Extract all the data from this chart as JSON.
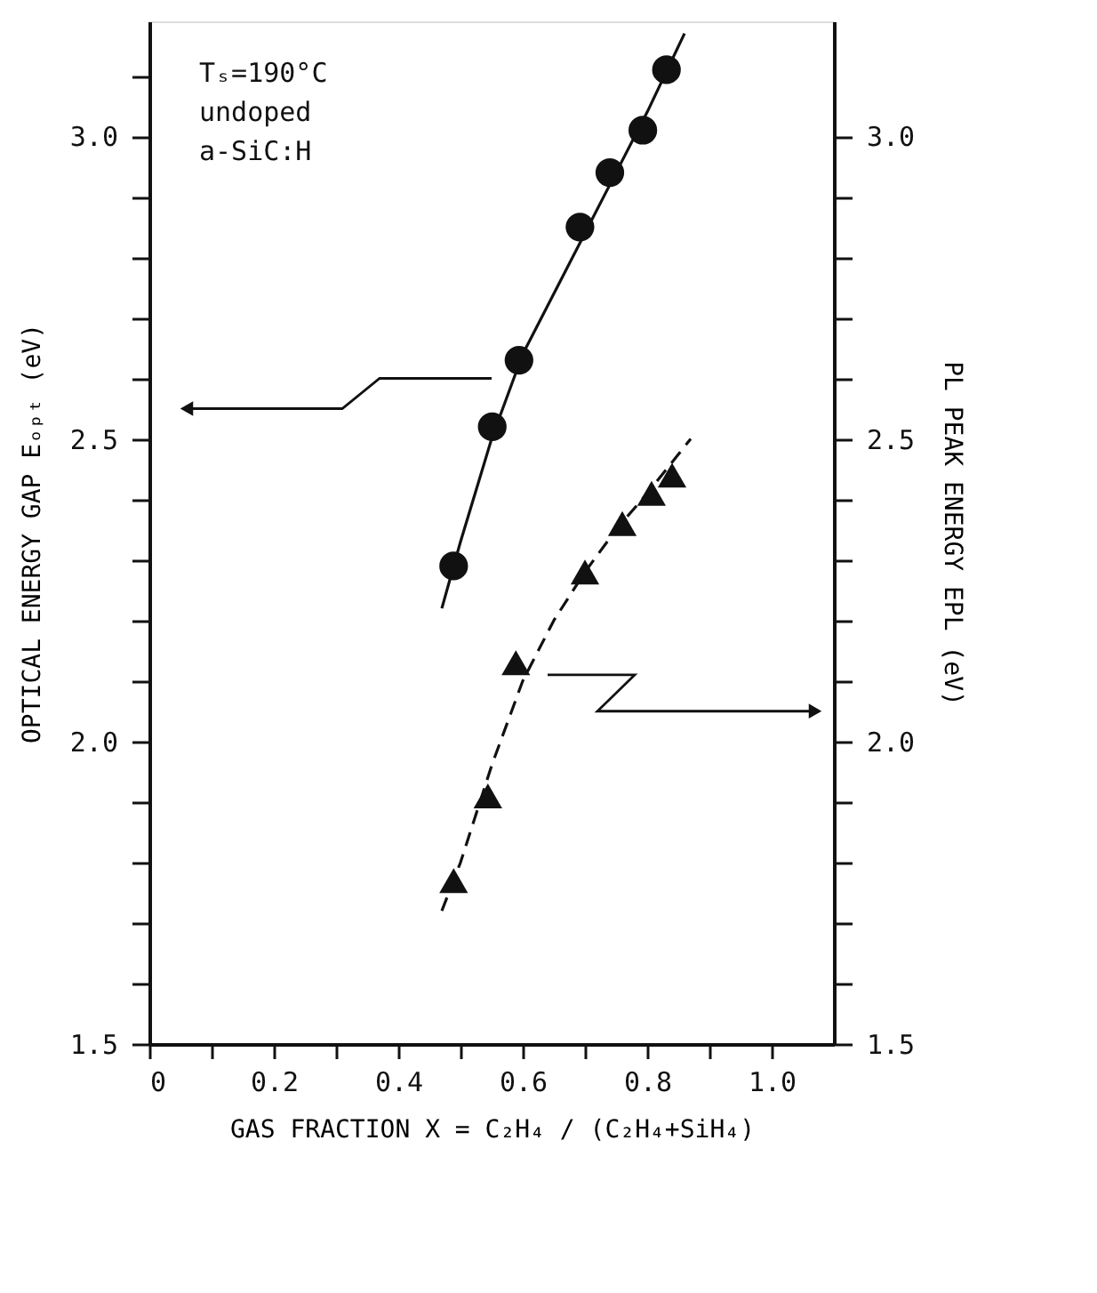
{
  "chart_data": {
    "type": "scatter",
    "xlabel": "GAS FRACTION X = C₂H₄ / (C₂H₄+SiH₄)",
    "ylabel": "OPTICAL ENERGY GAP Eₒₚₜ (eV)",
    "y2label": "PL PEAK ENERGY EPL (eV)",
    "annotations": [
      "Tₛ=190°C",
      "undoped",
      "a-SiC:H"
    ],
    "xlim": [
      0,
      1.1
    ],
    "xticks": [
      0,
      {
        "value": 0.1,
        "label": null
      },
      {
        "value": 0.2,
        "label": "0.2"
      },
      {
        "value": 0.3,
        "label": null
      },
      {
        "value": 0.4,
        "label": "0.4"
      },
      {
        "value": 0.5,
        "label": null
      },
      {
        "value": 0.6,
        "label": "0.6"
      },
      {
        "value": 0.7,
        "label": null
      },
      {
        "value": 0.8,
        "label": "0.8"
      },
      {
        "value": 0.9,
        "label": null
      },
      {
        "value": 1.0,
        "label": "1.0"
      }
    ],
    "ylim": [
      1.5,
      3.19
    ],
    "yticks": [
      {
        "value": 1.5,
        "label": "1.5"
      },
      {
        "value": 1.6,
        "label": null
      },
      {
        "value": 1.7,
        "label": null
      },
      {
        "value": 1.8,
        "label": null
      },
      {
        "value": 1.9,
        "label": null
      },
      {
        "value": 2.0,
        "label": "2.0"
      },
      {
        "value": 2.1,
        "label": null
      },
      {
        "value": 2.2,
        "label": null
      },
      {
        "value": 2.3,
        "label": null
      },
      {
        "value": 2.4,
        "label": null
      },
      {
        "value": 2.5,
        "label": "2.5"
      },
      {
        "value": 2.6,
        "label": null
      },
      {
        "value": 2.7,
        "label": null
      },
      {
        "value": 2.8,
        "label": null
      },
      {
        "value": 2.9,
        "label": null
      },
      {
        "value": 3.0,
        "label": "3.0"
      },
      {
        "value": 3.1,
        "label": null
      }
    ],
    "y2lim": [
      1.5,
      3.19
    ],
    "y2ticks": [
      {
        "value": 1.5,
        "label": "1.5"
      },
      {
        "value": 1.6,
        "label": null
      },
      {
        "value": 1.7,
        "label": null
      },
      {
        "value": 1.8,
        "label": null
      },
      {
        "value": 1.9,
        "label": null
      },
      {
        "value": 2.0,
        "label": "2.0"
      },
      {
        "value": 2.1,
        "label": null
      },
      {
        "value": 2.2,
        "label": null
      },
      {
        "value": 2.3,
        "label": null
      },
      {
        "value": 2.4,
        "label": null
      },
      {
        "value": 2.5,
        "label": "2.5"
      },
      {
        "value": 2.6,
        "label": null
      },
      {
        "value": 2.7,
        "label": null
      },
      {
        "value": 2.8,
        "label": null
      },
      {
        "value": 2.9,
        "label": null
      },
      {
        "value": 3.0,
        "label": "3.0"
      }
    ],
    "grid": false,
    "series": [
      {
        "marker": "circle",
        "color": "#111111",
        "x": [
          0.489,
          0.551,
          0.594,
          0.692,
          0.74,
          0.793,
          0.831
        ],
        "values": [
          2.29,
          2.52,
          2.63,
          2.85,
          2.94,
          3.01,
          3.11
        ]
      },
      {
        "type": "line",
        "line_style": "solid",
        "color": "#111111",
        "x": [
          0.47,
          0.5,
          0.55,
          0.6,
          0.65,
          0.7,
          0.75,
          0.8,
          0.86
        ],
        "values": [
          2.22,
          2.33,
          2.5,
          2.64,
          2.74,
          2.84,
          2.94,
          3.04,
          3.17
        ]
      },
      {
        "marker": "triangle",
        "axis": "y2",
        "color": "#111111",
        "x": [
          0.489,
          0.544,
          0.589,
          0.7,
          0.76,
          0.807,
          0.84
        ],
        "values": [
          1.77,
          1.91,
          2.13,
          2.28,
          2.36,
          2.41,
          2.44
        ]
      },
      {
        "type": "line",
        "line_style": "dashed",
        "axis": "y2",
        "color": "#111111",
        "x": [
          0.47,
          0.5,
          0.55,
          0.6,
          0.65,
          0.7,
          0.75,
          0.8,
          0.87
        ],
        "values": [
          1.72,
          1.8,
          1.96,
          2.1,
          2.2,
          2.28,
          2.35,
          2.41,
          2.5
        ]
      }
    ]
  }
}
